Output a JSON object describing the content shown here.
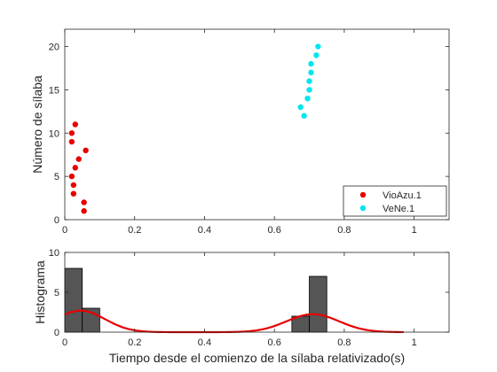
{
  "chart_data": [
    {
      "type": "scatter",
      "ylabel": "Número de sílaba",
      "xlim": [
        0,
        1.1
      ],
      "ylim": [
        0,
        22
      ],
      "xticks": [
        0,
        0.2,
        0.4,
        0.6,
        0.8,
        1
      ],
      "xtick_labels": [
        "0",
        "0.2",
        "0.4",
        "0.6",
        "0.8",
        "1"
      ],
      "yticks": [
        0,
        5,
        10,
        15,
        20
      ],
      "ytick_labels": [
        "0",
        "5",
        "10",
        "15",
        "20"
      ],
      "legend_position": "bottom-right",
      "grid": false,
      "series": [
        {
          "name": "VioAzu.1",
          "color": "#e60000",
          "points": [
            [
              0.055,
              1
            ],
            [
              0.055,
              2
            ],
            [
              0.025,
              3
            ],
            [
              0.025,
              4
            ],
            [
              0.02,
              5
            ],
            [
              0.03,
              6
            ],
            [
              0.04,
              7
            ],
            [
              0.06,
              8
            ],
            [
              0.02,
              9
            ],
            [
              0.02,
              10
            ],
            [
              0.03,
              11
            ]
          ]
        },
        {
          "name": "VeNe.1",
          "color": "#00e6f0",
          "points": [
            [
              0.685,
              12
            ],
            [
              0.675,
              13
            ],
            [
              0.695,
              14
            ],
            [
              0.7,
              15
            ],
            [
              0.7,
              16
            ],
            [
              0.705,
              17
            ],
            [
              0.705,
              18
            ],
            [
              0.72,
              19
            ],
            [
              0.725,
              20
            ]
          ]
        }
      ]
    },
    {
      "type": "bar",
      "ylabel": "Histograma",
      "xlabel": "Tiempo desde el comienzo de la sílaba relativizado(s)",
      "xlim": [
        0,
        1.1
      ],
      "ylim": [
        0,
        10
      ],
      "xticks": [
        0,
        0.2,
        0.4,
        0.6,
        0.8,
        1
      ],
      "xtick_labels": [
        "0",
        "0.2",
        "0.4",
        "0.6",
        "0.8",
        "1"
      ],
      "yticks": [
        0,
        5,
        10
      ],
      "ytick_labels": [
        "0",
        "5",
        "10"
      ],
      "bar_color": "#555555",
      "bars": [
        {
          "x0": 0.0,
          "x1": 0.05,
          "value": 8
        },
        {
          "x0": 0.05,
          "x1": 0.1,
          "value": 3
        },
        {
          "x0": 0.65,
          "x1": 0.7,
          "value": 2
        },
        {
          "x0": 0.7,
          "x1": 0.75,
          "value": 7
        }
      ],
      "density_curve": {
        "color": "#e60000",
        "x_range": [
          0,
          0.97
        ],
        "components": [
          {
            "amplitude": 2.7,
            "mean": 0.045,
            "sd": 0.07
          },
          {
            "amplitude": 2.25,
            "mean": 0.71,
            "sd": 0.075
          }
        ]
      }
    }
  ]
}
